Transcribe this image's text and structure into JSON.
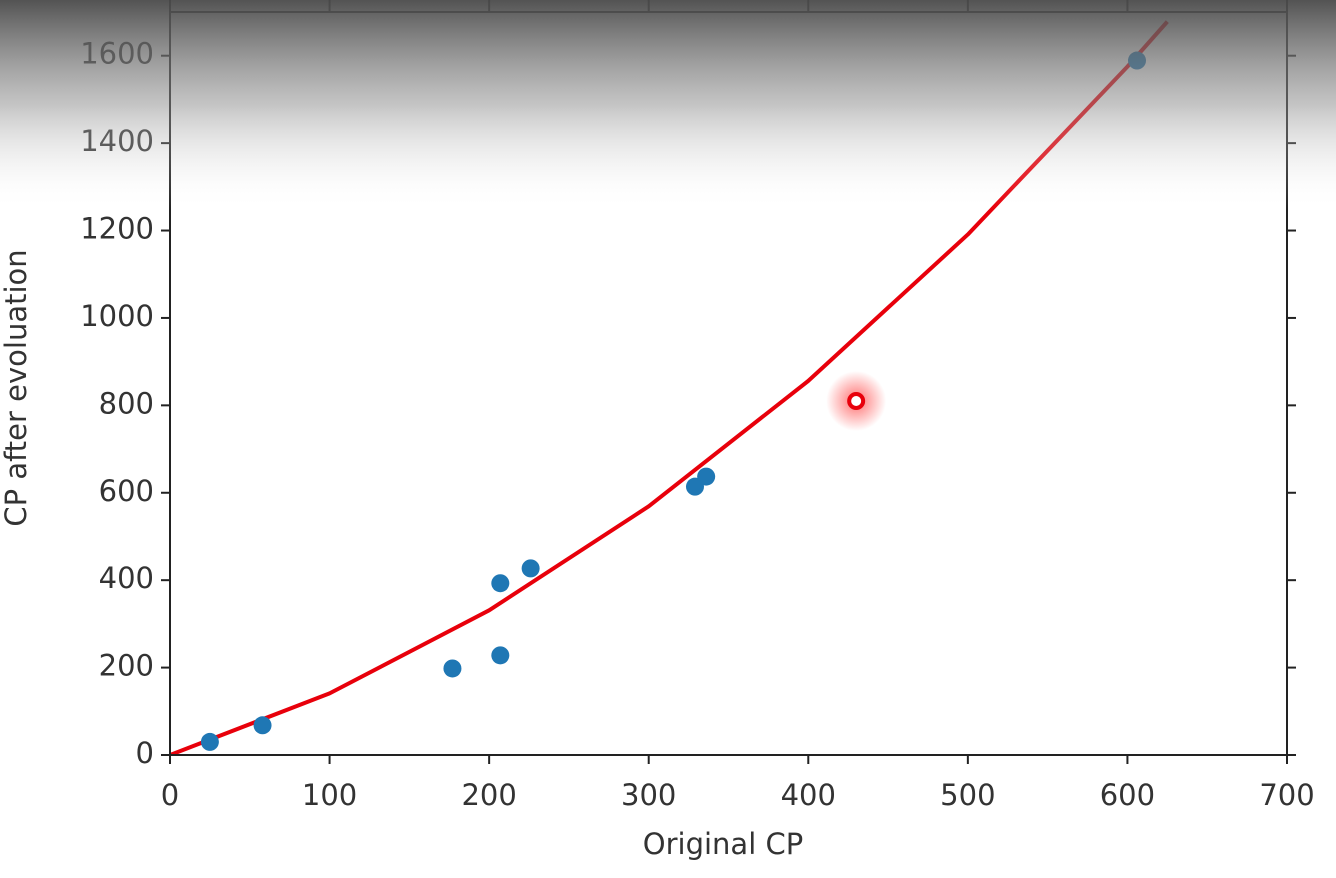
{
  "chart_data": {
    "type": "scatter",
    "xlabel": "Original CP",
    "ylabel": "CP after evoluation",
    "xlim": [
      0,
      700
    ],
    "xticks": [
      0,
      100,
      200,
      300,
      400,
      500,
      600,
      700
    ],
    "ylim": [
      0,
      1700
    ],
    "yticks": [
      0,
      200,
      400,
      600,
      800,
      1000,
      1200,
      1400,
      1600
    ],
    "series": [
      {
        "type": "scatter",
        "color": "#1f77b4",
        "x": [
          25,
          58,
          177,
          207,
          207,
          226,
          329,
          336,
          606
        ],
        "values": [
          30,
          68,
          198,
          393,
          228,
          427,
          614,
          637,
          1589
        ]
      },
      {
        "type": "highlight",
        "color": "#e8000b",
        "x": [
          430
        ],
        "values": [
          810
        ]
      },
      {
        "type": "line",
        "color": "#e8000b",
        "x": [
          0,
          100,
          200,
          300,
          400,
          500,
          600,
          625
        ],
        "values": [
          0,
          141,
          331,
          569,
          856,
          1191,
          1575,
          1678
        ]
      }
    ]
  }
}
